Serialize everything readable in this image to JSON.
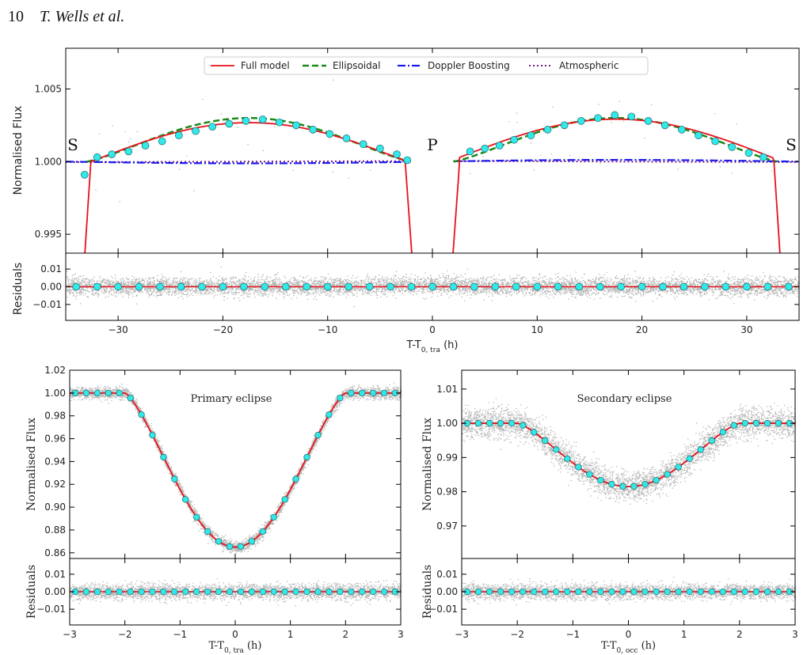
{
  "header": {
    "page_number": "10",
    "authors": "T. Wells et al."
  },
  "colors": {
    "full_model": "#e8101a",
    "ellipsoidal": "#1a8a1a",
    "doppler": "#1a1aee",
    "atmospheric": "#7a1a8a",
    "binned": "#33e8e8",
    "raw": "#9a9a9a"
  },
  "chart_data": [
    {
      "type": "line",
      "panel": "phase-curve",
      "xlabel": "T-T",
      "xlabel_sub": "0, tra",
      "xlabel_unit": " (h)",
      "ylabel": "Normalised Flux",
      "residual_ylabel": "Residuals",
      "xlim": [
        -35,
        35
      ],
      "ylim": [
        0.9937,
        1.0078
      ],
      "residual_ylim": [
        -0.019,
        0.019
      ],
      "xticks": [
        -30,
        -20,
        -10,
        0,
        10,
        20,
        30
      ],
      "xtick_labels": [
        "−30",
        "−20",
        "−10",
        "0",
        "10",
        "20",
        "30"
      ],
      "yticks": [
        0.995,
        1.0,
        1.005
      ],
      "ytick_labels": [
        "0.995",
        "1.000",
        "1.005"
      ],
      "residual_yticks": [
        -0.01,
        0.0,
        0.01
      ],
      "residual_ytick_labels": [
        "−0.01",
        "0.00",
        "0.01"
      ],
      "legend": [
        "Full model",
        "Ellipsoidal",
        "Doppler Boosting",
        "Atmospheric"
      ],
      "legend_position": "top-center",
      "annotations": [
        "S",
        "P",
        "S"
      ],
      "binned": {
        "x": [
          -33.2,
          -32.0,
          -30.6,
          -29.0,
          -27.4,
          -25.8,
          -24.2,
          -22.6,
          -21.0,
          -19.4,
          -17.8,
          -16.2,
          -14.6,
          -13.0,
          -11.4,
          -9.8,
          -8.2,
          -6.6,
          -5.0,
          -3.4,
          -2.4,
          3.6,
          5.0,
          6.4,
          7.8,
          9.4,
          11.0,
          12.6,
          14.2,
          15.8,
          17.4,
          19.0,
          20.6,
          22.2,
          23.8,
          25.4,
          27.0,
          28.6,
          30.2,
          31.6
        ],
        "y": [
          0.9991,
          1.0003,
          1.0005,
          1.0007,
          1.0011,
          1.0014,
          1.0018,
          1.0021,
          1.0024,
          1.0026,
          1.0028,
          1.0029,
          1.0027,
          1.0025,
          1.0022,
          1.0019,
          1.0016,
          1.0012,
          1.0009,
          1.0005,
          1.0001,
          1.0007,
          1.0009,
          1.0011,
          1.0015,
          1.0018,
          1.0022,
          1.0025,
          1.0028,
          1.003,
          1.0032,
          1.0031,
          1.0028,
          1.0025,
          1.0022,
          1.0018,
          1.0014,
          1.001,
          1.0006,
          1.0003
        ]
      },
      "residual_binned_x": [
        -34.0,
        -32.0,
        -30.0,
        -28.0,
        -26.0,
        -24.0,
        -22.0,
        -20.0,
        -18.0,
        -16.0,
        -14.0,
        -12.0,
        -10.0,
        -8.0,
        -6.0,
        -4.0,
        -2.0,
        0.0,
        2.0,
        4.0,
        6.0,
        8.0,
        10.0,
        12.0,
        14.0,
        16.0,
        18.0,
        20.0,
        22.0,
        24.0,
        26.0,
        28.0,
        30.0,
        32.0,
        34.0
      ]
    },
    {
      "type": "line",
      "panel": "primary-eclipse",
      "title": "Primary eclipse",
      "xlabel": "T-T",
      "xlabel_sub": "0, tra",
      "xlabel_unit": " (h)",
      "ylabel": "Normalised Flux",
      "residual_ylabel": "Residuals",
      "xlim": [
        -3,
        3
      ],
      "ylim": [
        0.855,
        1.02
      ],
      "residual_ylim": [
        -0.019,
        0.019
      ],
      "xticks": [
        -3,
        -2,
        -1,
        0,
        1,
        2,
        3
      ],
      "xtick_labels": [
        "−3",
        "−2",
        "−1",
        "0",
        "1",
        "2",
        "3"
      ],
      "yticks": [
        0.86,
        0.88,
        0.9,
        0.92,
        0.94,
        0.96,
        0.98,
        1.0,
        1.02
      ],
      "ytick_labels": [
        "0.86",
        "0.88",
        "0.90",
        "0.92",
        "0.94",
        "0.96",
        "0.98",
        "1.00",
        "1.02"
      ],
      "residual_yticks": [
        -0.01,
        0.0,
        0.01
      ],
      "residual_ytick_labels": [
        "−0.01",
        "0.00",
        "0.01"
      ],
      "depth": 0.135,
      "half_width": 2.0
    },
    {
      "type": "line",
      "panel": "secondary-eclipse",
      "title": "Secondary eclipse",
      "xlabel": "T-T",
      "xlabel_sub": "0, occ",
      "xlabel_unit": " (h)",
      "ylabel": "Normalised Flux",
      "residual_ylabel": "Residuals",
      "xlim": [
        -3,
        3
      ],
      "ylim": [
        0.9605,
        1.0155
      ],
      "residual_ylim": [
        -0.019,
        0.019
      ],
      "xticks": [
        -3,
        -2,
        -1,
        0,
        1,
        2,
        3
      ],
      "xtick_labels": [
        "−3",
        "−2",
        "−1",
        "0",
        "1",
        "2",
        "3"
      ],
      "yticks": [
        0.97,
        0.98,
        0.99,
        1.0,
        1.01
      ],
      "ytick_labels": [
        "0.97",
        "0.98",
        "0.99",
        "1.00",
        "1.01"
      ],
      "residual_yticks": [
        -0.01,
        0.0,
        0.01
      ],
      "residual_ytick_labels": [
        "−0.01",
        "0.00",
        "0.01"
      ],
      "depth": 0.0185,
      "half_width": 2.0
    }
  ]
}
